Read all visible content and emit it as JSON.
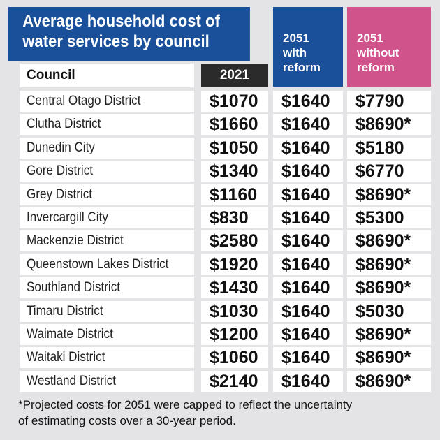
{
  "title": [
    "Average household cost of",
    "water services by council"
  ],
  "headers": {
    "council": "Council",
    "y2021": "2021",
    "with_reform": [
      "2051",
      "with",
      "reform"
    ],
    "without_reform": [
      "2051",
      "without",
      "reform"
    ]
  },
  "rows": [
    {
      "council": "Central Otago District",
      "c2021": "$1070",
      "with_reform": "$1640",
      "without_reform": "$7790"
    },
    {
      "council": "Clutha District",
      "c2021": "$1660",
      "with_reform": "$1640",
      "without_reform": "$8690*"
    },
    {
      "council": "Dunedin City",
      "c2021": "$1050",
      "with_reform": "$1640",
      "without_reform": "$5180"
    },
    {
      "council": "Gore District",
      "c2021": "$1340",
      "with_reform": "$1640",
      "without_reform": "$6770"
    },
    {
      "council": "Grey District",
      "c2021": "$1160",
      "with_reform": "$1640",
      "without_reform": "$8690*"
    },
    {
      "council": "Invercargill City",
      "c2021": "$830",
      "with_reform": "$1640",
      "without_reform": "$5300"
    },
    {
      "council": "Mackenzie District",
      "c2021": "$2580",
      "with_reform": "$1640",
      "without_reform": "$8690*"
    },
    {
      "council": "Queenstown Lakes District",
      "c2021": "$1920",
      "with_reform": "$1640",
      "without_reform": "$8690*"
    },
    {
      "council": "Southland District",
      "c2021": "$1430",
      "with_reform": "$1640",
      "without_reform": "$8690*"
    },
    {
      "council": "Timaru District",
      "c2021": "$1030",
      "with_reform": "$1640",
      "without_reform": "$5030"
    },
    {
      "council": "Waimate District",
      "c2021": "$1200",
      "with_reform": "$1640",
      "without_reform": "$8690*"
    },
    {
      "council": "Waitaki District",
      "c2021": "$1060",
      "with_reform": "$1640",
      "without_reform": "$8690*"
    },
    {
      "council": "Westland District",
      "c2021": "$2140",
      "with_reform": "$1640",
      "without_reform": "$8690*"
    }
  ],
  "footnote": [
    "*Projected costs for 2051 were capped to reflect the uncertainty",
    "of estimating costs over a 30-year period."
  ],
  "colors": {
    "blue": "#1a4f9a",
    "pink": "#d0548b",
    "dark": "#2b2b2b",
    "background": "#e4e4e6"
  }
}
